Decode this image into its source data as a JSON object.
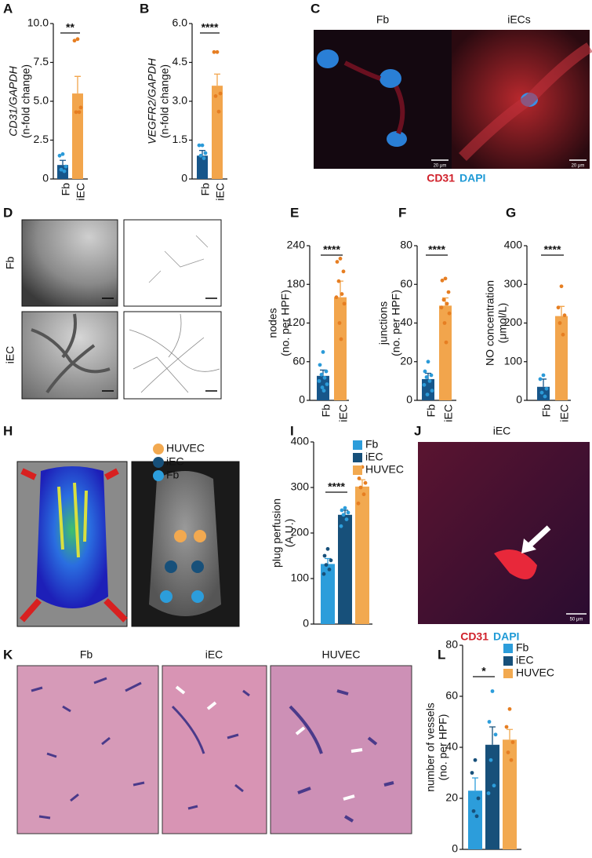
{
  "panel_letters": [
    "A",
    "B",
    "C",
    "D",
    "E",
    "F",
    "G",
    "H",
    "I",
    "J",
    "K",
    "L"
  ],
  "chart_data": [
    {
      "type": "bar",
      "ylabel": [
        "CD31/GAPDH",
        "(n-fold change)"
      ],
      "categories": [
        "Fb",
        "iEC"
      ],
      "values": [
        0.9,
        5.5
      ],
      "errors": [
        0.3,
        1.1
      ],
      "colors": [
        "#17568a",
        "#f2a54c"
      ],
      "point_colors": [
        "#2b9ad8",
        "#e67e22"
      ],
      "points": [
        [
          1.6,
          1.5,
          0.8,
          0.6,
          0.5
        ],
        [
          9.0,
          8.9,
          4.6,
          4.3,
          4.3
        ]
      ],
      "significance": "**",
      "legend": false,
      "ylim": [
        0,
        10
      ],
      "yticks": [
        0,
        2.5,
        {
          "value": 5,
          "label": "5.0"
        },
        7.5,
        {
          "value": 10,
          "label": "10.0"
        }
      ]
    },
    {
      "type": "bar",
      "ylabel": [
        "VEGFR2/GAPDH",
        "(n-fold change)"
      ],
      "categories": [
        "Fb",
        "iEC"
      ],
      "values": [
        0.9,
        3.6
      ],
      "errors": [
        0.2,
        0.45
      ],
      "colors": [
        "#17568a",
        "#f2a54c"
      ],
      "point_colors": [
        "#2b9ad8",
        "#e67e22"
      ],
      "points": [
        [
          1.3,
          1.3,
          1.0,
          0.9,
          0.8
        ],
        [
          4.9,
          4.9,
          3.3,
          3.2,
          2.6
        ]
      ],
      "significance": "****",
      "legend": false,
      "ylim": [
        0,
        6
      ],
      "yticks": [
        0,
        1.5,
        {
          "value": 3,
          "label": "3.0"
        },
        4.5,
        {
          "value": 6,
          "label": "6.0"
        }
      ]
    },
    {
      "type": "bar",
      "ylabel": [
        "nodes",
        "(no. per HPF)"
      ],
      "categories": [
        "Fb",
        "iEC"
      ],
      "values": [
        38,
        160
      ],
      "errors": [
        9,
        25
      ],
      "colors": [
        "#17568a",
        "#f2a54c"
      ],
      "point_colors": [
        "#2b9ad8",
        "#e67e22"
      ],
      "points": [
        [
          75,
          55,
          45,
          40,
          35,
          30,
          25,
          20,
          15
        ],
        [
          220,
          215,
          200,
          185,
          165,
          160,
          150,
          120,
          95
        ]
      ],
      "significance": "****",
      "legend": false,
      "ylim": [
        0,
        240
      ],
      "yticks": [
        0,
        60,
        120,
        180,
        240
      ]
    },
    {
      "type": "bar",
      "ylabel": [
        "junctions",
        "(no. per HPF)"
      ],
      "categories": [
        "Fb",
        "iEC"
      ],
      "values": [
        11,
        49
      ],
      "errors": [
        3,
        4
      ],
      "colors": [
        "#17568a",
        "#f2a54c"
      ],
      "point_colors": [
        "#2b9ad8",
        "#e67e22"
      ],
      "points": [
        [
          20,
          15,
          13,
          12,
          10,
          8,
          5,
          3
        ],
        [
          63,
          62,
          56,
          52,
          50,
          48,
          45,
          40,
          30
        ]
      ],
      "significance": "****",
      "legend": false,
      "ylim": [
        0,
        80
      ],
      "yticks": [
        0,
        20,
        40,
        60,
        80
      ]
    },
    {
      "type": "bar",
      "ylabel": [
        "NO concentration",
        "(μmol/L)"
      ],
      "categories": [
        "Fb",
        "iEC"
      ],
      "values": [
        35,
        218
      ],
      "errors": [
        20,
        25
      ],
      "colors": [
        "#17568a",
        "#f2a54c"
      ],
      "point_colors": [
        "#2b9ad8",
        "#e67e22"
      ],
      "points": [
        [
          65,
          55,
          30,
          20,
          10
        ],
        [
          295,
          240,
          220,
          200,
          170
        ]
      ],
      "significance": "****",
      "legend": false,
      "ylim": [
        0,
        400
      ],
      "yticks": [
        0,
        100,
        200,
        300,
        400
      ]
    },
    {
      "type": "bar",
      "ylabel": [
        "plug perfusion",
        "(A.U.)"
      ],
      "categories": [
        "Fb",
        "iEC",
        "HUVEC"
      ],
      "values": [
        132,
        240,
        302
      ],
      "errors": [
        12,
        10,
        15
      ],
      "colors": [
        "#2c9ddb",
        "#17507a",
        "#f2a950"
      ],
      "point_colors": [
        "#17507a",
        "#2c9ddb",
        "#e67e22"
      ],
      "points": [
        [
          165,
          150,
          140,
          130,
          120,
          110
        ],
        [
          255,
          250,
          245,
          240,
          230,
          215
        ],
        [
          345,
          320,
          310,
          300,
          285,
          265
        ]
      ],
      "significance": "****",
      "legend": true,
      "ylim": [
        0,
        400
      ],
      "yticks": [
        0,
        100,
        200,
        300,
        400
      ]
    },
    {
      "type": "bar",
      "ylabel": [
        "number of vessels",
        "(no. per HPF)"
      ],
      "categories": [
        "Fb",
        "iEC",
        "HUVEC"
      ],
      "values": [
        23,
        41,
        43
      ],
      "errors": [
        5,
        7,
        4
      ],
      "colors": [
        "#2c9ddb",
        "#17507a",
        "#f2a950"
      ],
      "point_colors": [
        "#17507a",
        "#2c9ddb",
        "#e67e22"
      ],
      "points": [
        [
          35,
          30,
          20,
          15,
          13
        ],
        [
          62,
          50,
          45,
          35,
          25,
          22
        ],
        [
          55,
          48,
          42,
          38,
          35
        ]
      ],
      "significance": "*",
      "legend": true,
      "ylim": [
        0,
        80
      ],
      "yticks": [
        0,
        20,
        40,
        60,
        80
      ]
    }
  ],
  "panel_C": {
    "columns": [
      "Fb",
      "iECs"
    ],
    "stains": [
      "CD31",
      "DAPI"
    ],
    "scale_bars": [
      "20 μm",
      "20 μm"
    ]
  },
  "panel_D": {
    "rows": [
      "Fb",
      "iEC"
    ]
  },
  "panel_H": {
    "legend": [
      "HUVEC",
      "iEC",
      "Fb"
    ]
  },
  "panel_J": {
    "title": "iEC",
    "stains": [
      "CD31",
      "DAPI"
    ],
    "scale_bar": "50 μm"
  },
  "panel_K": {
    "columns": [
      "Fb",
      "iEC",
      "HUVEC"
    ]
  }
}
